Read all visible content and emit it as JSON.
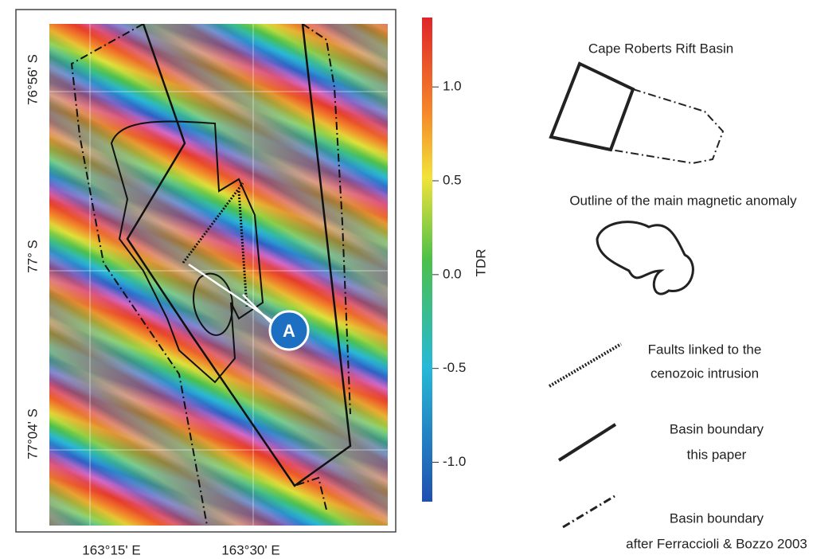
{
  "map": {
    "lat_labels": [
      "76°56' S",
      "77° S",
      "77°04' S"
    ],
    "lon_labels": [
      "163°15' E",
      "163°30' E"
    ],
    "site_label": "A"
  },
  "colorbar": {
    "label": "TDR",
    "clim": [
      -1.21,
      1.37
    ],
    "ticks": [
      {
        "value": 1,
        "label": "1.0"
      },
      0.5,
      {
        "value": 0,
        "label": "0.0"
      },
      -0.5,
      {
        "value": -1,
        "label": "-1.0"
      }
    ]
  },
  "legend": {
    "items": [
      {
        "lines": [
          "Cape Roberts Rift Basin"
        ]
      },
      {
        "lines": [
          "Outline of the main magnetic anomaly"
        ]
      },
      {
        "lines": [
          "Faults linked to the",
          "cenozoic intrusion"
        ]
      },
      {
        "lines": [
          "Basin boundary",
          "this paper"
        ]
      },
      {
        "lines": [
          "Basin boundary",
          "after Ferraccioli & Bozzo 2003"
        ]
      }
    ]
  }
}
